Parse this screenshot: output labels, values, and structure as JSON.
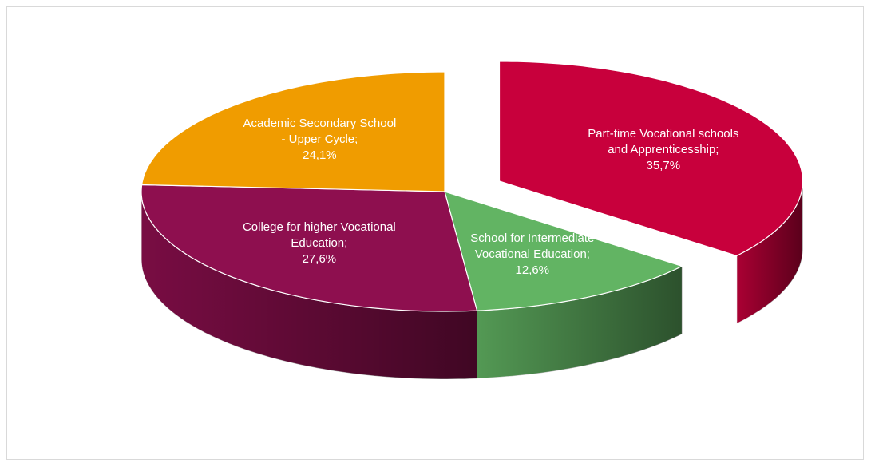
{
  "chart_data": {
    "type": "pie3d",
    "categories": [
      "Part-time Vocational schools and Apprenticesship",
      "School for Intermediate Vocational Education",
      "College for higher Vocational Education",
      "Academic Secondary School - Upper Cycle"
    ],
    "values": [
      35.7,
      12.6,
      27.6,
      24.1
    ],
    "value_labels": [
      "35,7%",
      "12,6%",
      "27,6%",
      "24,1%"
    ],
    "label_separator": ";",
    "colors": [
      "#c8003c",
      "#62b463",
      "#8e0f4f",
      "#f09c00"
    ],
    "exploded": [
      true,
      false,
      false,
      false
    ]
  }
}
